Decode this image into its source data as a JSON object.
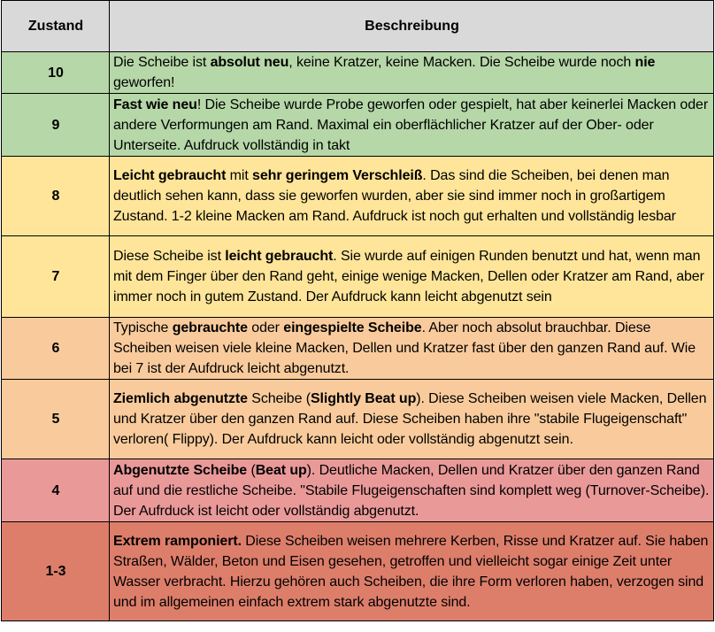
{
  "header": {
    "zustand": "Zustand",
    "beschreibung": "Beschreibung"
  },
  "colors": {
    "header": "#d9d9d9",
    "green": "#b6d7a8",
    "yellow": "#ffe599",
    "orange": "#f9cb9c",
    "pink": "#ea9999",
    "red": "#dd7e6b"
  },
  "rows": [
    {
      "zustand": "10",
      "color": "#b6d7a8",
      "segments": [
        {
          "t": "Die Scheibe ist ",
          "b": false
        },
        {
          "t": "absolut neu",
          "b": true
        },
        {
          "t": ", keine Kratzer, keine Macken. Die Scheibe wurde noch ",
          "b": false
        },
        {
          "t": "nie",
          "b": true
        },
        {
          "t": " geworfen!",
          "b": false
        }
      ]
    },
    {
      "zustand": "9",
      "color": "#b6d7a8",
      "segments": [
        {
          "t": "Fast wie neu",
          "b": true
        },
        {
          "t": "! Die Scheibe wurde Probe geworfen oder gespielt, hat aber keinerlei Macken oder andere Verformungen am Rand. Maximal ein oberflächlicher Kratzer auf der Ober- oder Unterseite. Aufdruck vollständig in takt",
          "b": false
        }
      ]
    },
    {
      "zustand": "8",
      "color": "#ffe599",
      "segments": [
        {
          "t": "Leicht gebraucht",
          "b": true
        },
        {
          "t": " mit ",
          "b": false
        },
        {
          "t": "sehr geringem Verschleiß",
          "b": true
        },
        {
          "t": ". Das sind die Scheiben, bei denen man deutlich sehen kann, dass sie geworfen wurden, aber sie sind immer noch in großartigem Zustand. 1-2 kleine Macken am Rand. Aufdruck ist noch gut erhalten und vollständig lesbar",
          "b": false
        }
      ]
    },
    {
      "zustand": "7",
      "color": "#ffe599",
      "segments": [
        {
          "t": "Diese Scheibe ist ",
          "b": false
        },
        {
          "t": "leicht gebraucht",
          "b": true
        },
        {
          "t": ". Sie wurde auf einigen Runden benutzt und hat, wenn man mit dem Finger über den Rand geht, einige wenige Macken, Dellen oder Kratzer am Rand, aber immer noch in gutem Zustand. Der Aufdruck kann leicht abgenutzt sein",
          "b": false
        }
      ]
    },
    {
      "zustand": "6",
      "color": "#f9cb9c",
      "segments": [
        {
          "t": "Typische ",
          "b": false
        },
        {
          "t": "gebrauchte",
          "b": true
        },
        {
          "t": " oder ",
          "b": false
        },
        {
          "t": "eingespielte Scheibe",
          "b": true
        },
        {
          "t": ". Aber noch absolut brauchbar. Diese Scheiben weisen viele kleine Macken, Dellen und Kratzer fast über den ganzen Rand auf. Wie bei 7 ist der Aufdruck leicht abgenutzt.",
          "b": false
        }
      ]
    },
    {
      "zustand": "5",
      "color": "#f9cb9c",
      "segments": [
        {
          "t": "Ziemlich abgenutzte",
          "b": true
        },
        {
          "t": " Scheibe (",
          "b": false
        },
        {
          "t": "Slightly Beat up",
          "b": true
        },
        {
          "t": "). Diese Scheiben weisen viele Macken, Dellen und Kratzer über den ganzen Rand auf. Diese Scheiben haben ihre \"stabile Flugeigenschaft\" verloren( Flippy). Der Aufdruck kann leicht oder vollständig abgenutzt sein.",
          "b": false
        }
      ]
    },
    {
      "zustand": "4",
      "color": "#ea9999",
      "segments": [
        {
          "t": "Abgenutzte Scheibe",
          "b": true
        },
        {
          "t": " (",
          "b": false
        },
        {
          "t": "Beat up",
          "b": true
        },
        {
          "t": "). Deutliche  Macken, Dellen und Kratzer über den ganzen Rand auf und die restliche Scheibe. \"Stabile Flugeigenschaften sind komplett weg (Turnover-Scheibe). Der Aufrduck ist leicht oder vollständig abgenutzt.",
          "b": false
        }
      ]
    },
    {
      "zustand": "1-3",
      "color": "#dd7e6b",
      "segments": [
        {
          "t": "Extrem ramponiert.",
          "b": true
        },
        {
          "t": " Diese Scheiben weisen mehrere Kerben, Risse und Kratzer auf. Sie haben Straßen, Wälder, Beton und Eisen gesehen, getroffen und vielleicht sogar einige Zeit unter Wasser verbracht. Hierzu gehören auch Scheiben, die ihre Form verloren haben, verzogen sind und im allgemeinen einfach extrem stark abgenutzte sind.",
          "b": false
        }
      ]
    }
  ]
}
